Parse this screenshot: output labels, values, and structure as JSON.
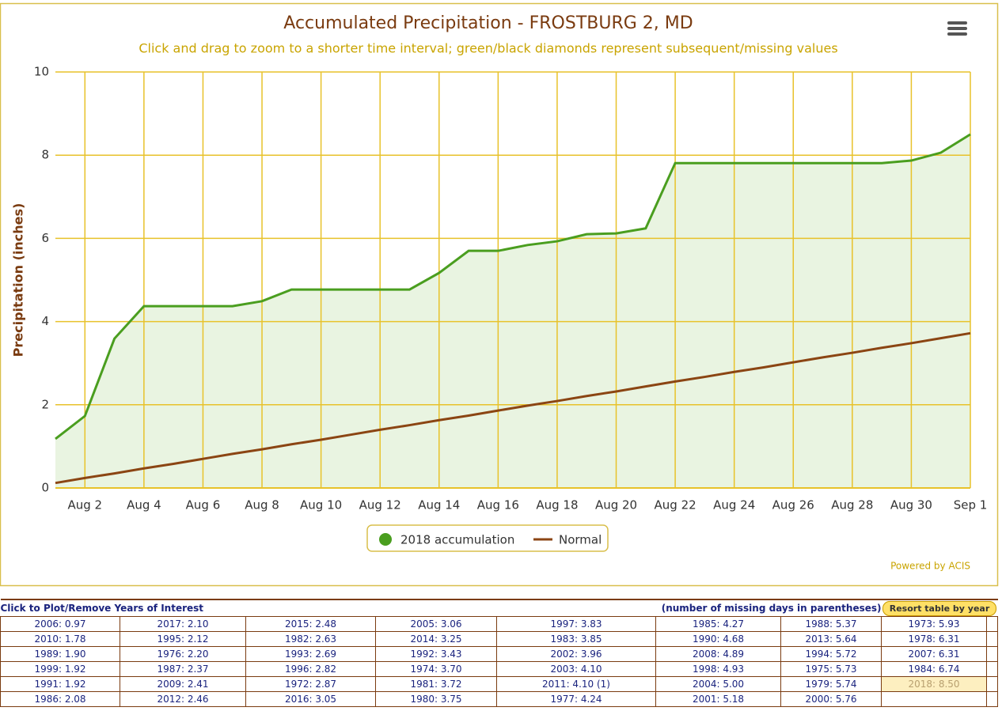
{
  "chart_data": {
    "type": "line",
    "title": "Accumulated Precipitation - FROSTBURG 2, MD",
    "subtitle": "Click and drag to zoom to a shorter time interval; green/black diamonds represent subsequent/missing values",
    "y_label": "Precipitation (inches)",
    "credit": "Powered by ACIS",
    "categories": [
      null,
      "Aug 2",
      null,
      "Aug 4",
      null,
      "Aug 6",
      null,
      "Aug 8",
      null,
      "Aug 10",
      null,
      "Aug 12",
      null,
      "Aug 14",
      null,
      "Aug 16",
      null,
      "Aug 18",
      null,
      "Aug 20",
      null,
      "Aug 22",
      null,
      "Aug 24",
      null,
      "Aug 26",
      null,
      "Aug 28",
      null,
      "Aug 30",
      null,
      "Sep 1"
    ],
    "series": [
      {
        "name": "2018 accumulation",
        "color": "#4a9e1f",
        "fill": "#e9f4e1",
        "values": [
          1.18,
          1.73,
          3.59,
          4.37,
          4.37,
          4.37,
          4.37,
          4.49,
          4.77,
          4.77,
          4.77,
          4.77,
          4.77,
          5.17,
          5.7,
          5.7,
          5.84,
          5.93,
          6.1,
          6.12,
          6.24,
          7.81,
          7.81,
          7.81,
          7.81,
          7.81,
          7.81,
          7.81,
          7.81,
          7.87,
          8.06,
          8.5
        ]
      },
      {
        "name": "Normal",
        "color": "#8b4513",
        "values": [
          0.12,
          0.24,
          0.35,
          0.47,
          0.58,
          0.7,
          0.82,
          0.93,
          1.05,
          1.16,
          1.28,
          1.4,
          1.51,
          1.63,
          1.74,
          1.86,
          1.98,
          2.09,
          2.21,
          2.32,
          2.44,
          2.56,
          2.67,
          2.79,
          2.9,
          3.02,
          3.14,
          3.25,
          3.37,
          3.48,
          3.6,
          3.72
        ]
      }
    ],
    "ylim": [
      0,
      10
    ],
    "yticks": [
      0,
      2,
      4,
      6,
      8,
      10
    ],
    "grid": true,
    "grid_color": "#e8c22a"
  },
  "table": {
    "header_left": "Click to Plot/Remove Years of Interest",
    "header_center": "(number of missing days in parentheses)",
    "button": "Resort table by year",
    "rows": [
      [
        "2006: 0.97",
        "2017: 2.10",
        "2015: 2.48",
        "2005: 3.06",
        "1997: 3.83",
        "1985: 4.27",
        "1988: 5.37",
        "1973: 5.93"
      ],
      [
        "2010: 1.78",
        "1995: 2.12",
        "1982: 2.63",
        "2014: 3.25",
        "1983: 3.85",
        "1990: 4.68",
        "2013: 5.64",
        "1978: 6.31"
      ],
      [
        "1989: 1.90",
        "1976: 2.20",
        "1993: 2.69",
        "1992: 3.43",
        "2002: 3.96",
        "2008: 4.89",
        "1994: 5.72",
        "2007: 6.31"
      ],
      [
        "1999: 1.92",
        "1987: 2.37",
        "1996: 2.82",
        "1974: 3.70",
        "2003: 4.10",
        "1998: 4.93",
        "1975: 5.73",
        "1984: 6.74"
      ],
      [
        "1991: 1.92",
        "2009: 2.41",
        "1972: 2.87",
        "1981: 3.72",
        "2011: 4.10 (1)",
        "2004: 5.00",
        "1979: 5.74",
        "2018: 8.50"
      ],
      [
        "1986: 2.08",
        "2012: 2.46",
        "2016: 3.05",
        "1980: 3.75",
        "1977: 4.24",
        "2001: 5.18",
        "2000: 5.76"
      ]
    ]
  }
}
